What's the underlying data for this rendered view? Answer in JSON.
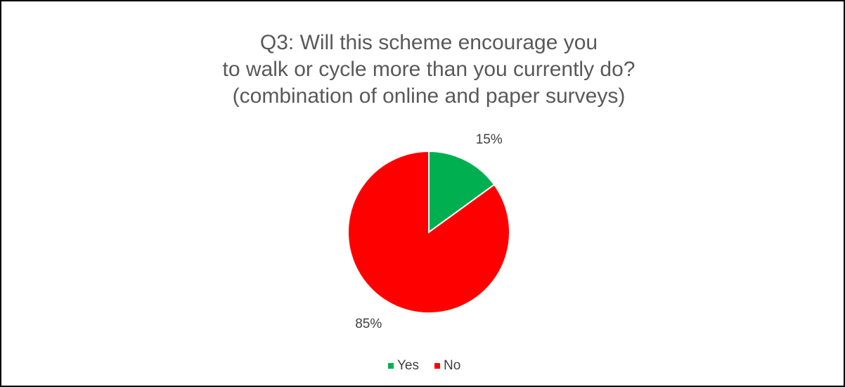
{
  "chart_data": {
    "type": "pie",
    "title": [
      "Q3: Will this scheme encourage you",
      "to walk or cycle more than you currently do?",
      "(combination of online and paper surveys)"
    ],
    "categories": [
      "Yes",
      "No"
    ],
    "values": [
      15,
      85
    ],
    "value_labels": [
      "15%",
      "85%"
    ],
    "colors": [
      "#00b050",
      "#ff0000"
    ],
    "legend": "bottom"
  }
}
